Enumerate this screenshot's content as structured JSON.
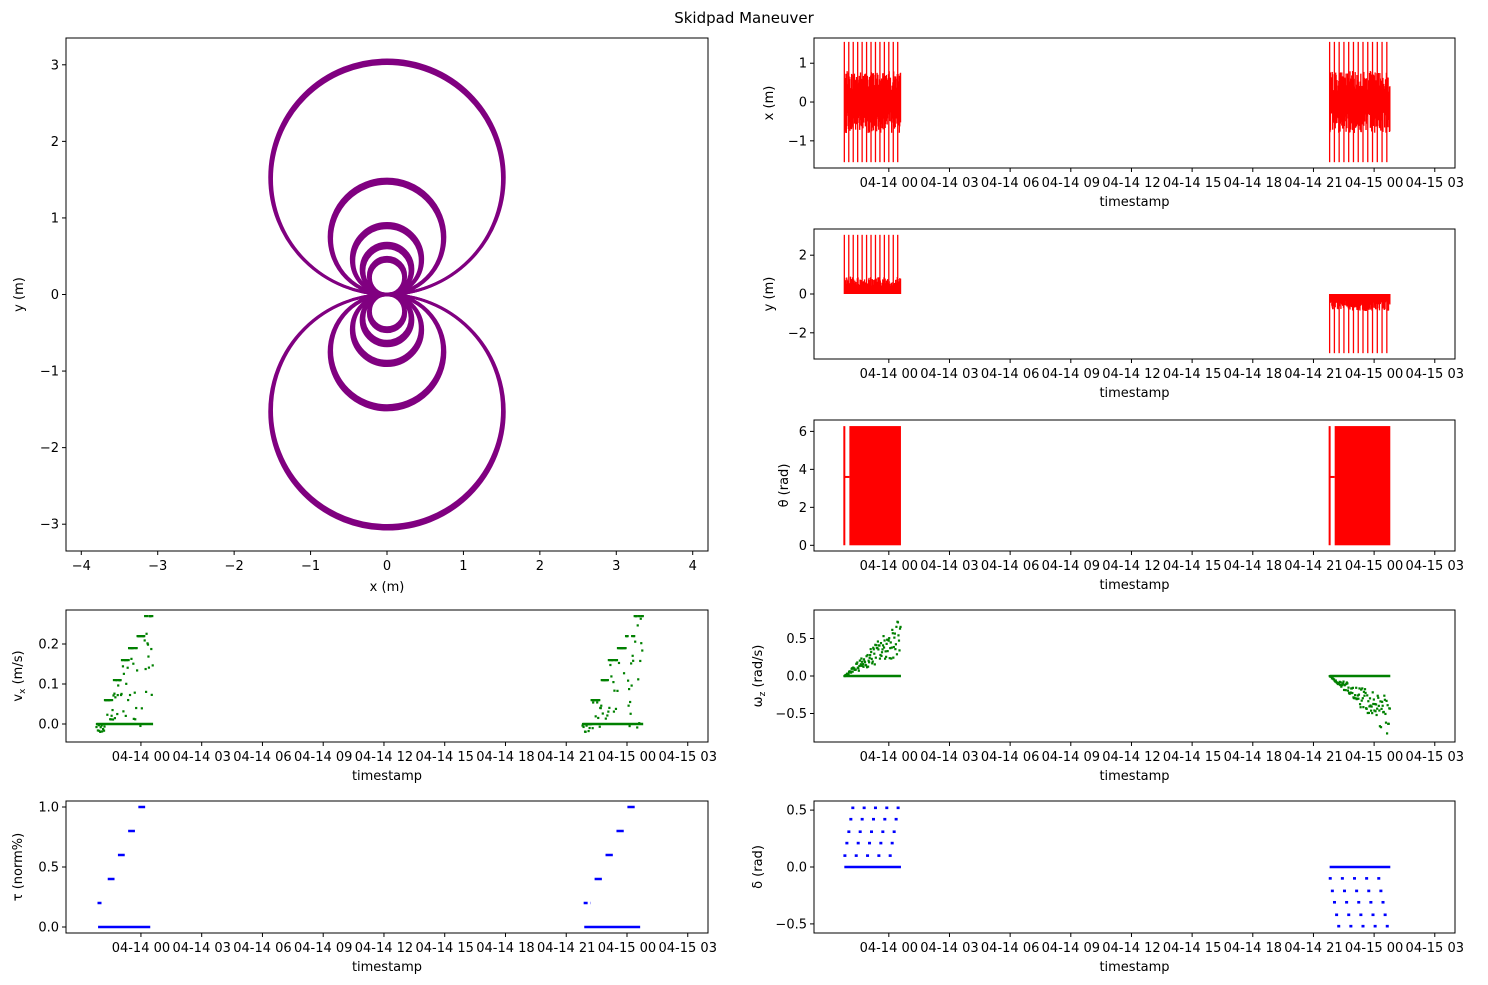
{
  "figure": {
    "title": "Skidpad Maneuver"
  },
  "colors": {
    "trajectory": "#800080",
    "pose": "#ff0000",
    "velocity": "#008000",
    "control": "#0000ff"
  },
  "time_axis": {
    "tick_labels": [
      "04-14 00",
      "04-14 03",
      "04-14 06",
      "04-14 09",
      "04-14 12",
      "04-14 15",
      "04-14 18",
      "04-14 21",
      "04-15 00",
      "04-15 03"
    ],
    "tick_hours": [
      0,
      3,
      6,
      9,
      12,
      15,
      18,
      21,
      24,
      27
    ],
    "range_hours": [
      -3.7,
      28.0
    ],
    "session_1_hours": [
      -2.2,
      0.6
    ],
    "session_2_hours": [
      21.8,
      24.8
    ]
  },
  "chart_data": [
    {
      "id": "trajectory",
      "type": "line",
      "xlabel": "x (m)",
      "ylabel": "y (m)",
      "xlim": [
        -4.2,
        4.2
      ],
      "ylim": [
        -3.35,
        3.35
      ],
      "xticks": [
        -4,
        -3,
        -2,
        -1,
        0,
        1,
        2,
        3,
        4
      ],
      "yticks": [
        -3,
        -2,
        -1,
        0,
        1,
        2,
        3
      ],
      "xtick_labels": [
        "−4",
        "−3",
        "−2",
        "−1",
        "0",
        "1",
        "2",
        "3",
        "4"
      ],
      "ytick_labels": [
        "−3",
        "−2",
        "−1",
        "0",
        "1",
        "2",
        "3"
      ],
      "circle_radii": [
        1.52,
        0.74,
        0.45,
        0.32,
        0.23
      ],
      "circle_centers_y_sign": [
        1,
        -1
      ],
      "grid": false
    },
    {
      "id": "x",
      "type": "line",
      "xlabel": "timestamp",
      "ylabel": "x (m)",
      "ylim": [
        -1.7,
        1.65
      ],
      "yticks": [
        -1,
        0,
        1
      ],
      "ytick_labels": [
        "−1",
        "0",
        "1"
      ],
      "value_range": [
        -1.55,
        1.55
      ],
      "pattern": "oscillation"
    },
    {
      "id": "y",
      "type": "line",
      "xlabel": "timestamp",
      "ylabel": "y (m)",
      "ylim": [
        -3.35,
        3.35
      ],
      "yticks": [
        -2,
        0,
        2
      ],
      "ytick_labels": [
        "−2",
        "0",
        "2"
      ],
      "session_1_range": [
        0,
        3.05
      ],
      "session_2_range": [
        -3.05,
        0
      ],
      "pattern": "spikes"
    },
    {
      "id": "theta",
      "type": "line",
      "xlabel": "timestamp",
      "ylabel": "θ (rad)",
      "ylim": [
        -0.3,
        6.6
      ],
      "yticks": [
        0,
        2,
        4,
        6
      ],
      "ytick_labels": [
        "0",
        "2",
        "4",
        "6"
      ],
      "value_range": [
        0,
        6.28
      ],
      "pattern": "fill"
    },
    {
      "id": "vx",
      "type": "scatter",
      "xlabel": "timestamp",
      "ylabel": "v_x (m/s)",
      "ylim": [
        -0.045,
        0.285
      ],
      "yticks": [
        0,
        0.1,
        0.2
      ],
      "ytick_labels": [
        "0.0",
        "0.1",
        "0.2"
      ],
      "levels": [
        0,
        0.06,
        0.11,
        0.16,
        0.19,
        0.22,
        0.27
      ],
      "scatter_range": [
        -0.03,
        0.27
      ],
      "pattern": "ramp-up"
    },
    {
      "id": "wz",
      "type": "scatter",
      "xlabel": "timestamp",
      "ylabel": "ω_z (rad/s)",
      "ylim": [
        -0.88,
        0.88
      ],
      "yticks": [
        -0.5,
        0,
        0.5
      ],
      "ytick_labels": [
        "−0.5",
        "0.0",
        "0.5"
      ],
      "session_1_max": 0.8,
      "session_2_min": -0.82,
      "pattern": "diverge"
    },
    {
      "id": "tau",
      "type": "scatter",
      "xlabel": "timestamp",
      "ylabel": "τ (norm%)",
      "ylim": [
        -0.05,
        1.05
      ],
      "yticks": [
        0,
        0.5,
        1
      ],
      "ytick_labels": [
        "0.0",
        "0.5",
        "1.0"
      ],
      "levels": [
        0,
        0.2,
        0.4,
        0.6,
        0.8,
        1.0
      ],
      "pattern": "steps"
    },
    {
      "id": "delta",
      "type": "scatter",
      "xlabel": "timestamp",
      "ylabel": "δ (rad)",
      "ylim": [
        -0.58,
        0.58
      ],
      "yticks": [
        -0.5,
        0,
        0.5
      ],
      "ytick_labels": [
        "−0.5",
        "0.0",
        "0.5"
      ],
      "session_1_levels": [
        0,
        0.1,
        0.21,
        0.31,
        0.42,
        0.52
      ],
      "session_2_levels": [
        0,
        -0.1,
        -0.21,
        -0.31,
        -0.42,
        -0.52
      ],
      "pattern": "steer-levels"
    }
  ]
}
